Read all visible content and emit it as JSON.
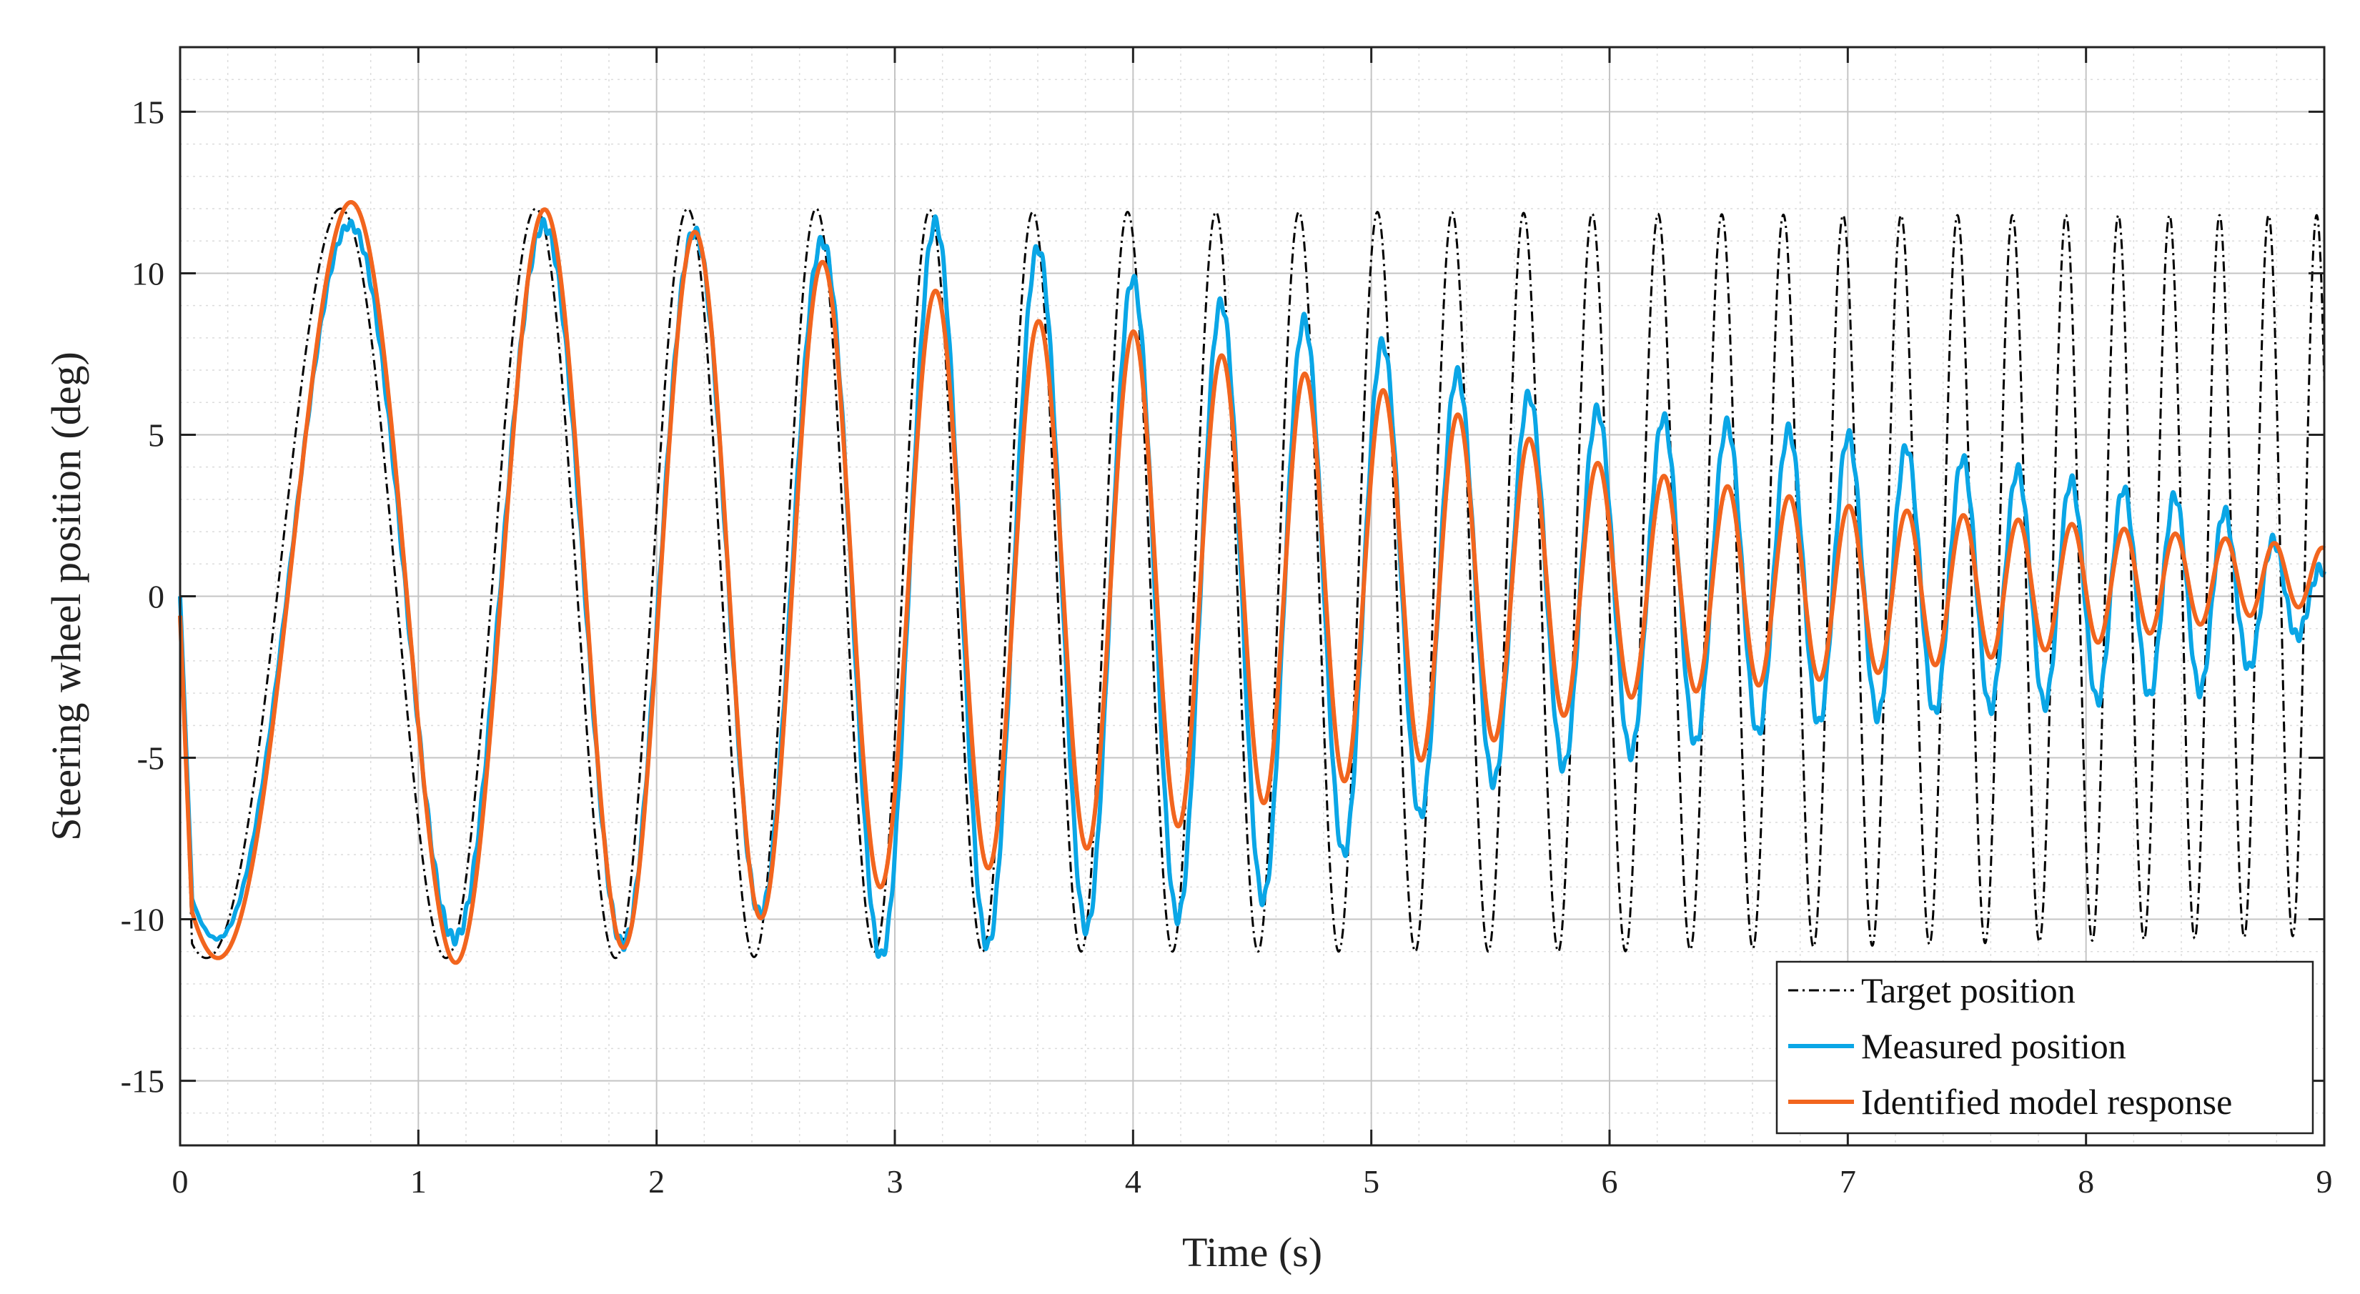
{
  "chart_data": {
    "type": "line",
    "title": "",
    "xlabel": "Time (s)",
    "ylabel": "Steering wheel position (deg)",
    "xlim": [
      0,
      9
    ],
    "ylim": [
      -17,
      17
    ],
    "xticks": [
      0,
      1,
      2,
      3,
      4,
      5,
      6,
      7,
      8,
      9
    ],
    "yticks": [
      -15,
      -10,
      -5,
      0,
      5,
      10,
      15
    ],
    "grid": true,
    "minor_grid": true,
    "legend_position": "bottom-right",
    "signal": {
      "description": "linear chirp sweep",
      "start_frequency_hz": 0.7,
      "chirp_rate_hz_per_s": 0.48,
      "phase_offset_cycles": 0.33,
      "target_amplitude_deg": 11.5,
      "target_offset_deg": 0.5
    },
    "series": [
      {
        "name": "Target position",
        "color": "#000000",
        "style": "dash-dot",
        "peaks": [
          [
            1.0,
            12.0
          ],
          [
            1.66,
            12.0
          ],
          [
            2.1,
            12.0
          ],
          [
            2.5,
            12.0
          ],
          [
            2.85,
            12.0
          ],
          [
            3.5,
            11.9
          ],
          [
            5.0,
            11.9
          ],
          [
            7.0,
            11.8
          ],
          [
            9.0,
            11.8
          ]
        ],
        "troughs": [
          [
            0.5,
            -11.2
          ],
          [
            1.38,
            -11.2
          ],
          [
            1.9,
            -11.2
          ],
          [
            2.35,
            -11.2
          ],
          [
            2.72,
            -11.0
          ],
          [
            4.0,
            -11.0
          ],
          [
            6.0,
            -11.0
          ],
          [
            9.0,
            -10.5
          ]
        ]
      },
      {
        "name": "Measured position",
        "color": "#0aa6e6",
        "style": "solid",
        "peaks": [
          [
            1.05,
            11.5
          ],
          [
            1.68,
            11.5
          ],
          [
            2.15,
            11.3
          ],
          [
            2.55,
            11.0
          ],
          [
            2.9,
            11.0
          ],
          [
            3.18,
            11.6
          ],
          [
            3.7,
            10.6
          ],
          [
            4.2,
            9.3
          ],
          [
            4.6,
            8.8
          ],
          [
            5.0,
            8.0
          ],
          [
            5.5,
            6.5
          ],
          [
            6.0,
            5.7
          ],
          [
            7.0,
            5.0
          ],
          [
            8.0,
            3.5
          ],
          [
            8.5,
            3.0
          ],
          [
            9.0,
            0.8
          ]
        ],
        "troughs": [
          [
            0.5,
            -10.6
          ],
          [
            1.38,
            -10.6
          ],
          [
            1.92,
            -10.8
          ],
          [
            2.35,
            -10.0
          ],
          [
            2.72,
            -9.3
          ],
          [
            3.03,
            -11.9
          ],
          [
            3.5,
            -10.5
          ],
          [
            4.0,
            -10.2
          ],
          [
            4.5,
            -9.6
          ],
          [
            5.0,
            -7.5
          ],
          [
            5.5,
            -5.8
          ],
          [
            6.0,
            -5.0
          ],
          [
            7.0,
            -3.8
          ],
          [
            8.0,
            -3.3
          ],
          [
            8.55,
            -2.9
          ],
          [
            9.0,
            -0.7
          ]
        ]
      },
      {
        "name": "Identified model response",
        "color": "#f2651e",
        "style": "solid",
        "peaks": [
          [
            1.04,
            12.2
          ],
          [
            1.69,
            11.9
          ],
          [
            2.15,
            11.3
          ],
          [
            2.55,
            10.6
          ],
          [
            2.9,
            10.0
          ],
          [
            3.2,
            9.4
          ],
          [
            3.5,
            8.6
          ],
          [
            4.0,
            8.2
          ],
          [
            4.5,
            7.2
          ],
          [
            5.0,
            6.5
          ],
          [
            5.5,
            5.3
          ],
          [
            6.0,
            4.0
          ],
          [
            6.5,
            3.4
          ],
          [
            7.0,
            2.8
          ],
          [
            8.0,
            2.2
          ],
          [
            9.0,
            1.5
          ]
        ],
        "troughs": [
          [
            0.52,
            -11.2
          ],
          [
            1.4,
            -11.4
          ],
          [
            1.93,
            -10.8
          ],
          [
            2.37,
            -10.1
          ],
          [
            2.73,
            -9.4
          ],
          [
            3.05,
            -8.8
          ],
          [
            3.5,
            -8.3
          ],
          [
            4.0,
            -7.5
          ],
          [
            4.5,
            -6.5
          ],
          [
            5.0,
            -5.5
          ],
          [
            5.5,
            -4.5
          ],
          [
            6.0,
            -3.2
          ],
          [
            7.0,
            -2.5
          ],
          [
            8.0,
            -1.5
          ],
          [
            9.0,
            -0.2
          ]
        ]
      }
    ]
  }
}
